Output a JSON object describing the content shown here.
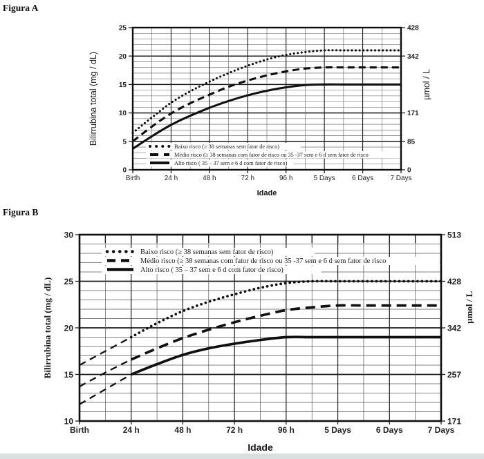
{
  "page": {
    "background": "#ffffff",
    "bottom_strip_color": "#dcdfe0"
  },
  "figures": [
    {
      "label": "Figura A"
    },
    {
      "label": "Figura B"
    }
  ],
  "colors": {
    "curve": "#101010",
    "grid_minor": "#575757",
    "grid_major": "#1b1b1b",
    "text": "#222222"
  },
  "chart_data": [
    {
      "type": "line",
      "figure_label": "Figura A",
      "xlabel": "Idade",
      "ylabel_left": "Bilirrubina total (mg / dL)",
      "ylabel_right": "µmol / L",
      "x_tick_labels": [
        "Birth",
        "24 h",
        "48 h",
        "72 h",
        "96 h",
        "5 Days",
        "6 Days",
        "7 Days"
      ],
      "x_tick_hours": [
        0,
        24,
        48,
        72,
        96,
        120,
        144,
        168
      ],
      "x_range_hours": [
        0,
        168
      ],
      "ylim_left": [
        0,
        25
      ],
      "yticks_left": [
        0,
        5,
        10,
        15,
        20,
        25
      ],
      "yticks_right": [
        [
          0,
          "0"
        ],
        [
          5,
          "85"
        ],
        [
          10,
          "171"
        ],
        [
          20,
          "342"
        ],
        [
          25,
          "428"
        ]
      ],
      "grid": {
        "y_minor_step": 1,
        "y_major_step": 5,
        "x_minor_step_hours": 12,
        "x_major_step_hours": 24,
        "grid_on": true
      },
      "legend_position": "bottom-left",
      "x_hours": [
        0,
        12,
        24,
        36,
        48,
        60,
        72,
        84,
        96,
        108,
        120,
        132,
        144,
        156,
        168
      ],
      "series": [
        {
          "name": "Baixo risco",
          "legend_text": "Baixo risco  (≥ 38 semanas sem fator de risco)",
          "style": "dotted",
          "lead_dashed_before_24h": false,
          "values": [
            6.5,
            9.2,
            11.8,
            13.8,
            15.5,
            17.0,
            18.3,
            19.4,
            20.2,
            20.7,
            21.0,
            21.0,
            21.0,
            21.0,
            21.0
          ]
        },
        {
          "name": "Médio risco",
          "legend_text": "Médio risco (≥ 38 semanas com fator de risco ou 35 -37 sem e 6 d sem fator de risco",
          "style": "dashed",
          "lead_dashed_before_24h": false,
          "values": [
            5.0,
            7.6,
            9.9,
            11.7,
            13.2,
            14.6,
            15.7,
            16.6,
            17.3,
            17.8,
            18.0,
            18.0,
            18.0,
            18.0,
            18.0
          ]
        },
        {
          "name": "Alto risco",
          "legend_text": "Alto risco   ( 35 – 37 sem e 6 d com fator de risco)",
          "style": "solid",
          "lead_dashed_before_24h": false,
          "values": [
            3.7,
            5.9,
            7.9,
            9.5,
            10.9,
            12.1,
            13.1,
            13.9,
            14.5,
            14.9,
            15.0,
            15.0,
            15.0,
            15.0,
            15.0
          ]
        }
      ]
    },
    {
      "type": "line",
      "figure_label": "Figura B",
      "xlabel": "Idade",
      "ylabel_left": "Bilirrubina total (mg / dL)",
      "ylabel_right": "µmol / L",
      "x_tick_labels": [
        "Birth",
        "24 h",
        "48 h",
        "72 h",
        "96 h",
        "5 Days",
        "6 Days",
        "7 Days"
      ],
      "x_tick_hours": [
        0,
        24,
        48,
        72,
        96,
        120,
        144,
        168
      ],
      "x_range_hours": [
        0,
        168
      ],
      "ylim_left": [
        10,
        30
      ],
      "yticks_left": [
        10,
        15,
        20,
        25,
        30
      ],
      "yticks_right": [
        [
          10,
          "171"
        ],
        [
          15,
          "257"
        ],
        [
          20,
          "342"
        ],
        [
          25,
          "428"
        ],
        [
          30,
          "513"
        ]
      ],
      "grid": {
        "y_minor_step": 1,
        "y_major_step": 5,
        "x_minor_step_hours": 12,
        "x_major_step_hours": 24,
        "grid_on": true
      },
      "legend_position": "top-left",
      "x_hours": [
        0,
        12,
        24,
        36,
        48,
        60,
        72,
        84,
        96,
        108,
        120,
        132,
        144,
        156,
        168
      ],
      "series": [
        {
          "name": "Baixo risco",
          "legend_text": "Baixo risco  (≥ 38 semanas sem fator de risco)",
          "style": "dotted",
          "lead_dashed_before_24h": true,
          "values": [
            16.0,
            17.5,
            19.0,
            20.5,
            21.8,
            22.8,
            23.6,
            24.3,
            24.8,
            25.0,
            25.0,
            25.0,
            25.0,
            25.0,
            25.0
          ]
        },
        {
          "name": "Médio risco",
          "legend_text": "Médio risco (≥ 38 semanas com fator de risco ou 35 -37 sem e 6 d sem fator de risco",
          "style": "dashed",
          "lead_dashed_before_24h": true,
          "values": [
            13.7,
            15.2,
            16.6,
            17.8,
            18.9,
            19.8,
            20.6,
            21.3,
            21.9,
            22.2,
            22.4,
            22.4,
            22.4,
            22.4,
            22.4
          ]
        },
        {
          "name": "Alto risco",
          "legend_text": "Alto risco   ( 35 – 37 sem e 6 d com fator de risco)",
          "style": "solid",
          "lead_dashed_before_24h": true,
          "values": [
            11.8,
            13.4,
            15.0,
            16.1,
            17.1,
            17.8,
            18.3,
            18.7,
            19.0,
            19.0,
            19.0,
            19.0,
            19.0,
            19.0,
            19.0
          ]
        }
      ]
    }
  ]
}
